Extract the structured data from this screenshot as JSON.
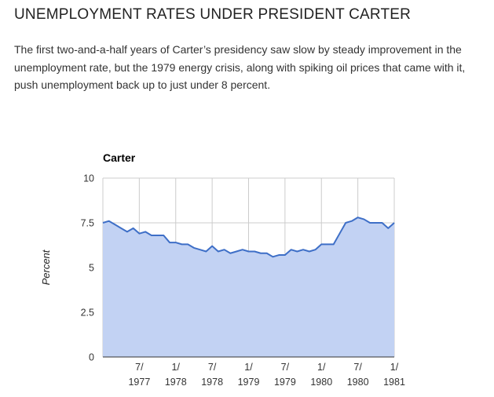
{
  "article": {
    "heading": "UNEMPLOYMENT RATES UNDER PRESIDENT CARTER",
    "intro": "The first two-and-a-half years of Carter’s presidency saw slow by steady improvement in the unemployment rate, but the 1979 energy crisis, along with spiking oil prices that came with it, push unemployment back up to just under 8 percent."
  },
  "chart_data": {
    "type": "area",
    "title": "Carter",
    "ylabel": "Percent",
    "xlabel": "",
    "ylim": [
      0,
      10
    ],
    "y_ticks": [
      {
        "value": 0,
        "label": "0"
      },
      {
        "value": 2.5,
        "label": "2.5"
      },
      {
        "value": 5,
        "label": "5"
      },
      {
        "value": 7.5,
        "label": "7.5"
      },
      {
        "value": 10,
        "label": "10"
      }
    ],
    "x_ticks": [
      {
        "month_index": 6,
        "line1": "7/",
        "line2": "1977"
      },
      {
        "month_index": 12,
        "line1": "1/",
        "line2": "1978"
      },
      {
        "month_index": 18,
        "line1": "7/",
        "line2": "1978"
      },
      {
        "month_index": 24,
        "line1": "1/",
        "line2": "1979"
      },
      {
        "month_index": 30,
        "line1": "7/",
        "line2": "1979"
      },
      {
        "month_index": 36,
        "line1": "1/",
        "line2": "1980"
      },
      {
        "month_index": 42,
        "line1": "7/",
        "line2": "1980"
      },
      {
        "month_index": 48,
        "line1": "1/",
        "line2": "1981"
      }
    ],
    "grid": true,
    "legend": "none",
    "colors": {
      "line": "#3e6fc7",
      "fill": "#c2d2f3",
      "grid": "#cccccc"
    },
    "series": [
      {
        "values": [
          7.5,
          7.6,
          7.4,
          7.2,
          7.0,
          7.2,
          6.9,
          7.0,
          6.8,
          6.8,
          6.8,
          6.4,
          6.4,
          6.3,
          6.3,
          6.1,
          6.0,
          5.9,
          6.2,
          5.9,
          6.0,
          5.8,
          5.9,
          6.0,
          5.9,
          5.9,
          5.8,
          5.8,
          5.6,
          5.7,
          5.7,
          6.0,
          5.9,
          6.0,
          5.9,
          6.0,
          6.3,
          6.3,
          6.3,
          6.9,
          7.5,
          7.6,
          7.8,
          7.7,
          7.5,
          7.5,
          7.5,
          7.2,
          7.5
        ]
      }
    ]
  }
}
